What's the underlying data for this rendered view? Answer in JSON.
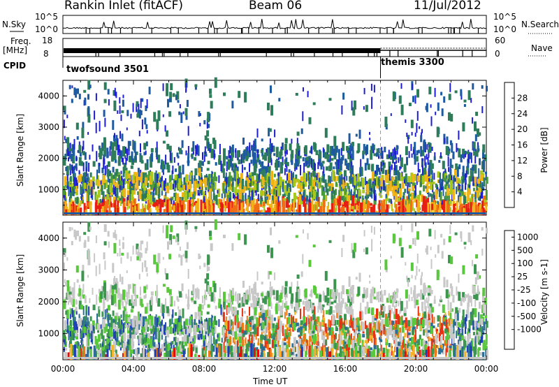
{
  "header": {
    "station": "Rankin Inlet (fitACF)",
    "beam": "Beam 06",
    "date": "11/Jul/2012"
  },
  "top_panels": {
    "nsky_label": "N.Sky",
    "nsearch_label": "N.Search",
    "nsky_ticks": [
      "10^5",
      "10^0"
    ],
    "nsearch_ticks": [
      "10^5",
      "10^0"
    ],
    "freq_label_1": "Freq.",
    "freq_label_2": "[MHz]",
    "freq_ticks": [
      "18",
      "8"
    ],
    "nave_label": "Nave",
    "nave_ticks": [
      "60",
      "0"
    ],
    "cpid_label": "CPID",
    "cpid_segments": [
      {
        "name": "twofsound 3501",
        "start_hour": 0,
        "end_hour": 18
      },
      {
        "name": "themis 3300",
        "start_hour": 18,
        "end_hour": 24
      }
    ]
  },
  "chart_data": [
    {
      "type": "heatmap",
      "name": "power",
      "ylabel": "Slant Range [km]",
      "xlabel": "",
      "xlim_hours": [
        0,
        24
      ],
      "ylim": [
        180,
        4500
      ],
      "yticks": [
        1000,
        2000,
        3000,
        4000
      ],
      "colorbar_label": "Power [dB]",
      "colorbar_ticks": [
        "4",
        "8",
        "12",
        "16",
        "20",
        "24",
        "28"
      ],
      "colors": [
        "#1e1ed2",
        "#1e5aa0",
        "#2e7d5a",
        "#4a9a3c",
        "#a8c81e",
        "#f0b418",
        "#f06e14",
        "#e61e14"
      ],
      "grid": false
    },
    {
      "type": "heatmap",
      "name": "velocity",
      "ylabel": "Slant Range [km]",
      "xlabel": "Time UT",
      "xlim_hours": [
        0,
        24
      ],
      "xticks": [
        "00:00",
        "04:00",
        "08:00",
        "12:00",
        "16:00",
        "20:00",
        "00:00"
      ],
      "ylim": [
        180,
        4500
      ],
      "yticks": [
        1000,
        2000,
        3000,
        4000
      ],
      "colorbar_label": "Velocity [m s-1]",
      "colorbar_ticks": [
        "1000",
        "500",
        "100",
        "25",
        "-25",
        "-100",
        "-500",
        "-1000"
      ],
      "colors": [
        "#1e3cb4",
        "#2d6e96",
        "#3c9650",
        "#5ac83c",
        "#c8c8c8",
        "#f5b428",
        "#f07814",
        "#e63214",
        "#e60a0a"
      ],
      "grid": false
    }
  ]
}
